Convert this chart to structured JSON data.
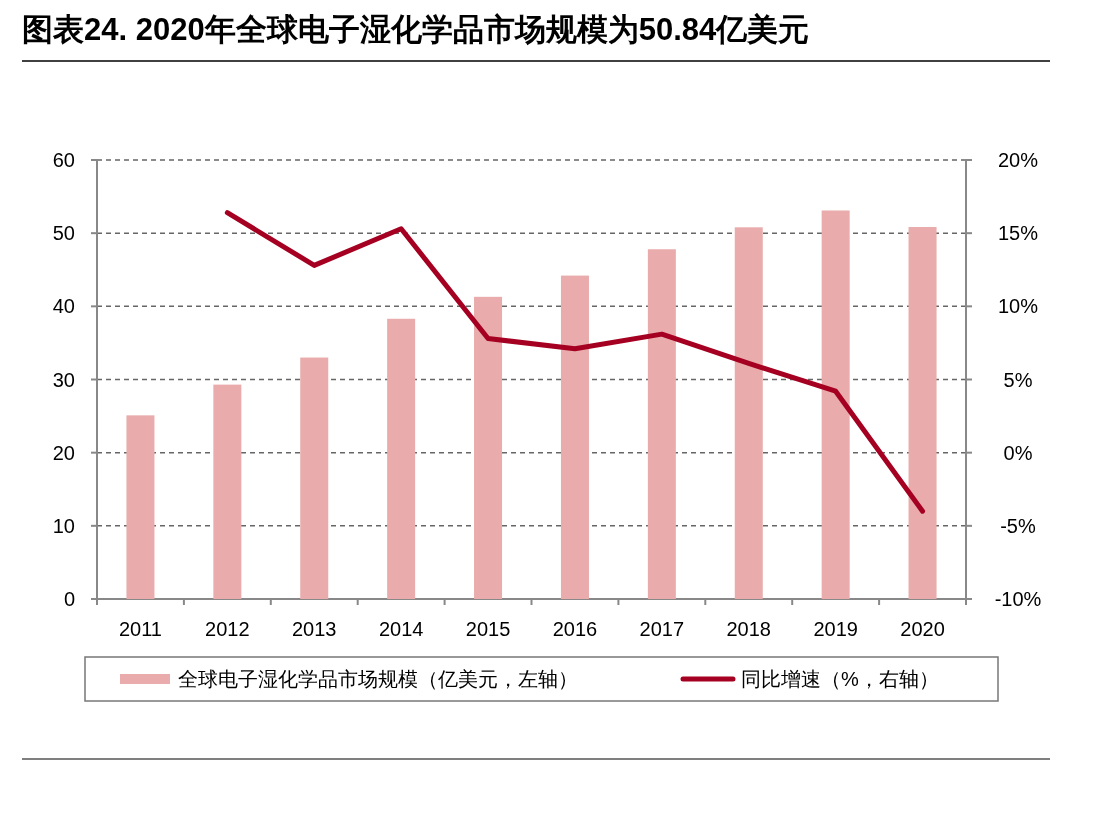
{
  "chart_data": {
    "type": "bar",
    "title": "图表24. 2020年全球电子湿化学品市场规模为50.84亿美元",
    "categories": [
      "2011",
      "2012",
      "2013",
      "2014",
      "2015",
      "2016",
      "2017",
      "2018",
      "2019",
      "2020"
    ],
    "series": [
      {
        "name": "全球电子湿化学品市场规模（亿美元，左轴）",
        "color": "#e9abab",
        "values": [
          25.1,
          29.3,
          33.0,
          38.3,
          41.3,
          44.2,
          47.8,
          50.8,
          53.1,
          50.84
        ]
      },
      {
        "name": "同比增速（%，右轴）",
        "type": "line",
        "axis": "y2",
        "color": "#a50021",
        "values": [
          null,
          16.4,
          12.8,
          15.3,
          7.8,
          7.1,
          8.1,
          6.1,
          4.2,
          -4.0
        ]
      }
    ],
    "ylim": [
      0,
      60
    ],
    "yticks": [
      0,
      10,
      20,
      30,
      40,
      50,
      60
    ],
    "y2lim": [
      -10,
      20
    ],
    "y2ticks": [
      {
        "value": -10,
        "label": "-10%"
      },
      {
        "value": -5,
        "label": "-5%"
      },
      {
        "value": 0,
        "label": "0%"
      },
      {
        "value": 5,
        "label": "5%"
      },
      {
        "value": 10,
        "label": "10%"
      },
      {
        "value": 15,
        "label": "15%"
      },
      {
        "value": 20,
        "label": "20%"
      }
    ],
    "grid": "y",
    "legend": "bottom"
  }
}
